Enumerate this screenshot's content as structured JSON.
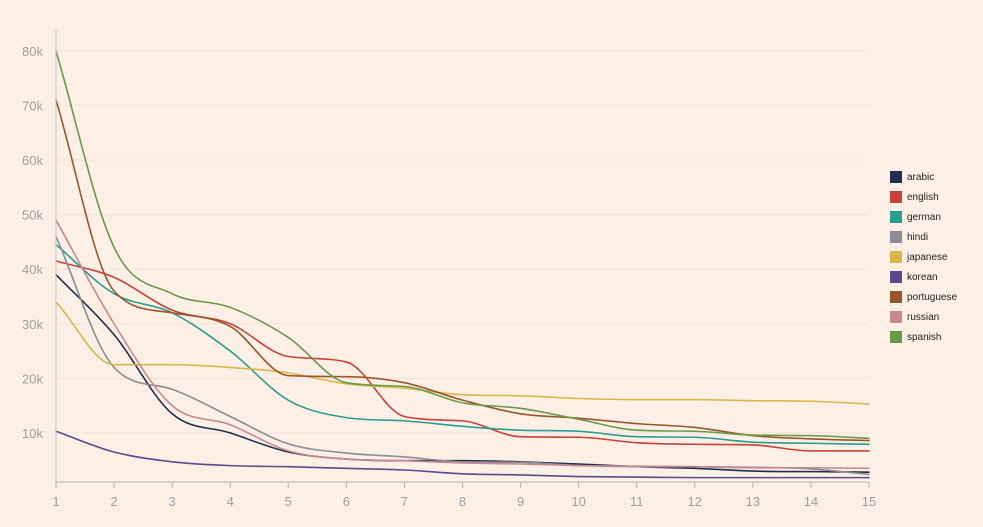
{
  "chart_data": {
    "type": "line",
    "x": [
      1,
      2,
      3,
      4,
      5,
      6,
      7,
      8,
      9,
      10,
      11,
      12,
      13,
      14,
      15
    ],
    "xlim": [
      1,
      15
    ],
    "ylim": [
      1000,
      82000
    ],
    "y_ticks": [
      10000,
      20000,
      30000,
      40000,
      50000,
      60000,
      70000,
      80000
    ],
    "y_tick_labels": [
      "10k",
      "20k",
      "30k",
      "40k",
      "50k",
      "60k",
      "70k",
      "80k"
    ],
    "x_tick_labels": [
      "1",
      "2",
      "3",
      "4",
      "5",
      "6",
      "7",
      "8",
      "9",
      "10",
      "11",
      "12",
      "13",
      "14",
      "15"
    ],
    "grid": true,
    "legend_position": "right",
    "title": "",
    "xlabel": "",
    "ylabel": "",
    "series": [
      {
        "name": "arabic",
        "color": "#1f2e4d",
        "values": [
          39000,
          28000,
          13500,
          10000,
          6500,
          5200,
          4900,
          4900,
          4700,
          4300,
          3800,
          3500,
          3000,
          2900,
          2800
        ]
      },
      {
        "name": "english",
        "color": "#c8423a",
        "values": [
          41500,
          38500,
          32500,
          30000,
          24000,
          23000,
          13000,
          12200,
          9300,
          9200,
          8200,
          7900,
          7800,
          6700,
          6700
        ]
      },
      {
        "name": "german",
        "color": "#2a9d8f",
        "values": [
          44500,
          35500,
          32000,
          25000,
          16000,
          12800,
          12200,
          11200,
          10500,
          10300,
          9300,
          9200,
          8300,
          8100,
          7900
        ]
      },
      {
        "name": "hindi",
        "color": "#8c8c96",
        "values": [
          46000,
          22000,
          18000,
          13000,
          8000,
          6300,
          5600,
          4700,
          4600,
          4000,
          3800,
          3800,
          3700,
          3400,
          2400
        ]
      },
      {
        "name": "japanese",
        "color": "#d8b84a",
        "values": [
          34000,
          22500,
          22500,
          22000,
          21000,
          19000,
          18200,
          17000,
          16800,
          16300,
          16100,
          16100,
          15900,
          15800,
          15300
        ]
      },
      {
        "name": "korean",
        "color": "#5a4a8c",
        "values": [
          10300,
          6500,
          4700,
          4000,
          3800,
          3500,
          3200,
          2500,
          2300,
          2000,
          1900,
          1800,
          1800,
          1800,
          1800
        ]
      },
      {
        "name": "portuguese",
        "color": "#98562c",
        "values": [
          71000,
          36000,
          32000,
          29500,
          20500,
          20300,
          19200,
          16000,
          13500,
          12700,
          11700,
          11000,
          9500,
          8900,
          8600
        ]
      },
      {
        "name": "russian",
        "color": "#c88890",
        "values": [
          49000,
          30000,
          15000,
          11500,
          6700,
          5200,
          4900,
          4500,
          4300,
          4000,
          3900,
          3800,
          3600,
          3600,
          3500
        ]
      },
      {
        "name": "spanish",
        "color": "#6a9a48",
        "values": [
          80000,
          44000,
          35500,
          33000,
          27500,
          19200,
          18500,
          15500,
          14500,
          12500,
          10500,
          10300,
          9600,
          9500,
          9000
        ]
      }
    ]
  }
}
